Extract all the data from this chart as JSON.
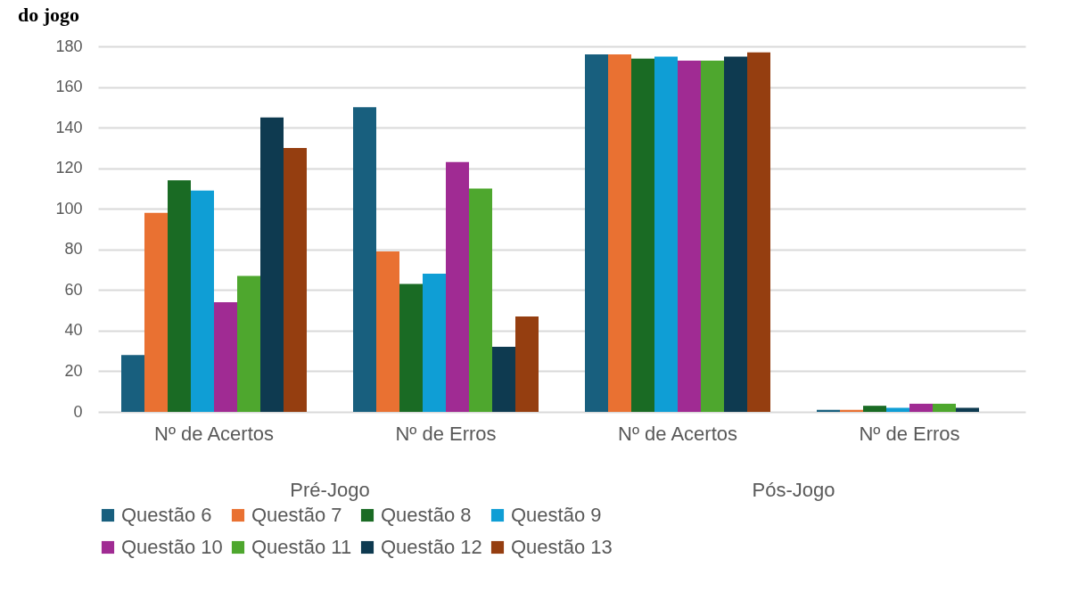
{
  "chart_data": {
    "type": "bar",
    "title": "do jogo",
    "categories": [
      "Nº de Acertos",
      "Nº de Erros",
      "Nº de Acertos",
      "Nº de Erros"
    ],
    "annotations": [
      "Pré-Jogo",
      "Pós-Jogo"
    ],
    "series": [
      {
        "name": "Questão 6",
        "color": "#185f7e",
        "values": [
          28,
          150,
          176,
          1
        ]
      },
      {
        "name": "Questão 7",
        "color": "#e97132",
        "values": [
          98,
          79,
          176,
          1
        ]
      },
      {
        "name": "Questão 8",
        "color": "#1a6b24",
        "values": [
          114,
          63,
          174,
          3
        ]
      },
      {
        "name": "Questão 9",
        "color": "#0f9ed5",
        "values": [
          109,
          68,
          175,
          2
        ]
      },
      {
        "name": "Questão 10",
        "color": "#a02b93",
        "values": [
          54,
          123,
          173,
          4
        ]
      },
      {
        "name": "Questão 11",
        "color": "#4ea72e",
        "values": [
          67,
          110,
          173,
          4
        ]
      },
      {
        "name": "Questão 12",
        "color": "#0e3a50",
        "values": [
          145,
          32,
          175,
          2
        ]
      },
      {
        "name": "Questão 13",
        "color": "#953e10",
        "values": [
          130,
          47,
          177,
          0
        ]
      }
    ],
    "ylim": [
      0,
      180
    ],
    "yticks": [
      0,
      20,
      40,
      60,
      80,
      100,
      120,
      140,
      160,
      180
    ],
    "grid": "y",
    "legend": "bottom"
  }
}
